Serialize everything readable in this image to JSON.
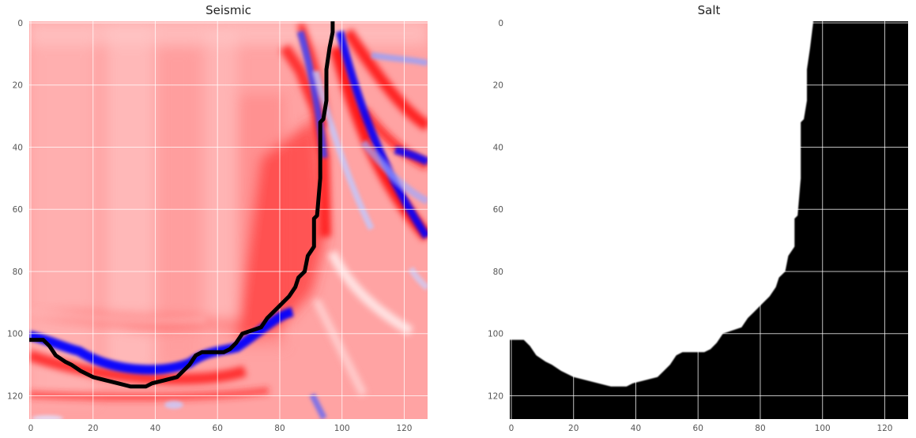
{
  "chart_data": [
    {
      "type": "heatmap",
      "title": "Seismic",
      "xlabel": "",
      "ylabel": "",
      "xlim": [
        0,
        127
      ],
      "ylim": [
        127,
        0
      ],
      "x_ticks": [
        0,
        20,
        40,
        60,
        80,
        100,
        120
      ],
      "y_ticks": [
        0,
        20,
        40,
        60,
        80,
        100,
        120
      ],
      "colormap": "seismic (blue-white-red)",
      "grid": true,
      "overlay": {
        "name": "salt boundary contour",
        "color": "#000000",
        "points": [
          [
            97,
            0
          ],
          [
            97,
            3
          ],
          [
            96,
            8
          ],
          [
            95,
            15
          ],
          [
            95,
            25
          ],
          [
            94,
            31
          ],
          [
            93,
            32
          ],
          [
            93,
            50
          ],
          [
            92,
            62
          ],
          [
            91,
            63
          ],
          [
            91,
            72
          ],
          [
            89,
            75
          ],
          [
            88,
            80
          ],
          [
            86,
            82
          ],
          [
            85,
            85
          ],
          [
            83,
            88
          ],
          [
            80,
            91
          ],
          [
            78,
            93
          ],
          [
            76,
            95
          ],
          [
            74,
            98
          ],
          [
            71,
            99
          ],
          [
            68,
            100
          ],
          [
            66,
            103
          ],
          [
            64,
            105
          ],
          [
            62,
            106
          ],
          [
            55,
            106
          ],
          [
            53,
            107
          ],
          [
            51,
            110
          ],
          [
            49,
            112
          ],
          [
            47,
            114
          ],
          [
            43,
            115
          ],
          [
            39,
            116
          ],
          [
            37,
            117
          ],
          [
            32,
            117
          ],
          [
            28,
            116
          ],
          [
            24,
            115
          ],
          [
            20,
            114
          ],
          [
            16,
            112
          ],
          [
            13,
            110
          ],
          [
            11,
            109
          ],
          [
            8,
            107
          ],
          [
            6,
            104
          ],
          [
            4,
            102
          ],
          [
            0,
            102
          ]
        ]
      },
      "colors": {
        "salt_red": "#ff0000",
        "fill_red": "#ff8c8c",
        "white": "#ffffff",
        "event_blue": "#0000ff"
      }
    },
    {
      "type": "heatmap",
      "title": "Salt",
      "xlabel": "",
      "ylabel": "",
      "xlim": [
        0,
        127
      ],
      "ylim": [
        127,
        0
      ],
      "x_ticks": [
        0,
        20,
        40,
        60,
        80,
        100,
        120
      ],
      "y_ticks": [
        0,
        20,
        40,
        60,
        80,
        100,
        120
      ],
      "colormap": "binary mask (white = salt, black = sediment)",
      "grid": true,
      "mask_boundary": [
        [
          97,
          0
        ],
        [
          96,
          8
        ],
        [
          95,
          15
        ],
        [
          95,
          25
        ],
        [
          94,
          31
        ],
        [
          93,
          32
        ],
        [
          93,
          50
        ],
        [
          92,
          62
        ],
        [
          91,
          63
        ],
        [
          91,
          72
        ],
        [
          89,
          75
        ],
        [
          88,
          80
        ],
        [
          86,
          82
        ],
        [
          85,
          85
        ],
        [
          83,
          88
        ],
        [
          80,
          91
        ],
        [
          78,
          93
        ],
        [
          76,
          95
        ],
        [
          74,
          98
        ],
        [
          71,
          99
        ],
        [
          68,
          100
        ],
        [
          66,
          103
        ],
        [
          64,
          105
        ],
        [
          62,
          106
        ],
        [
          55,
          106
        ],
        [
          53,
          107
        ],
        [
          51,
          110
        ],
        [
          49,
          112
        ],
        [
          47,
          114
        ],
        [
          43,
          115
        ],
        [
          39,
          116
        ],
        [
          37,
          117
        ],
        [
          32,
          117
        ],
        [
          28,
          116
        ],
        [
          24,
          115
        ],
        [
          20,
          114
        ],
        [
          16,
          112
        ],
        [
          13,
          110
        ],
        [
          11,
          109
        ],
        [
          8,
          107
        ],
        [
          6,
          104
        ],
        [
          4,
          102
        ],
        [
          0,
          102
        ]
      ],
      "colors": {
        "salt": "#ffffff",
        "sediment": "#000000"
      }
    }
  ]
}
